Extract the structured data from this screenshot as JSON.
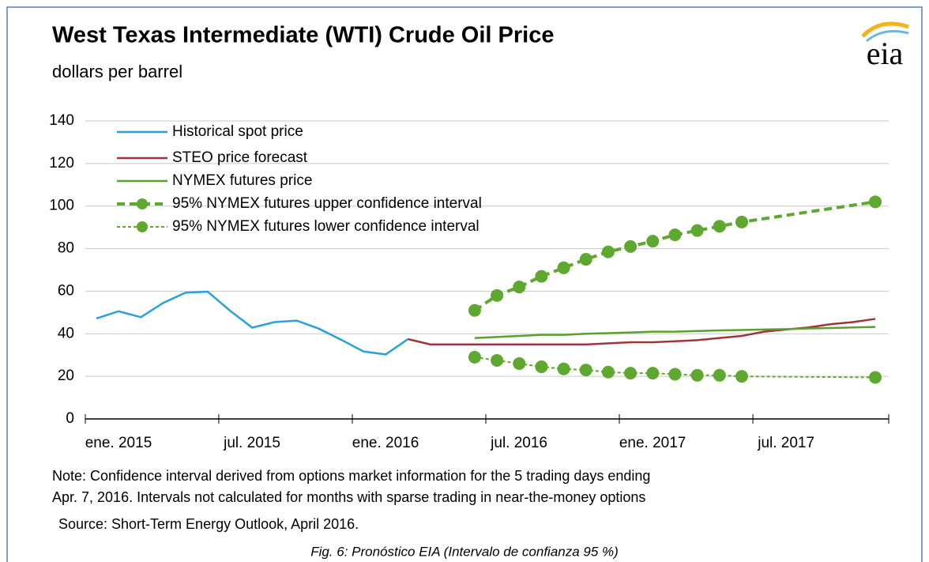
{
  "chart_data": {
    "type": "line",
    "title": "West Texas Intermediate (WTI) Crude Oil Price",
    "subtitle": "dollars per barrel",
    "logo": "eia",
    "note": [
      "Note: Confidence interval derived from options market information for the 5 trading days ending",
      "Apr. 7, 2016. Intervals not calculated for months with sparse trading in near-the-money options"
    ],
    "source": "Source: Short-Term Energy Outlook, April 2016.",
    "caption": "Fig. 6: Pronóstico EIA (Intervalo de confianza 95 %)",
    "categories": [
      "ene. 2015",
      null,
      null,
      null,
      null,
      null,
      "jul. 2015",
      null,
      null,
      null,
      null,
      null,
      "ene. 2016",
      null,
      null,
      null,
      null,
      null,
      "jul. 2016",
      null,
      null,
      null,
      null,
      null,
      "ene. 2017",
      null,
      null,
      null,
      null,
      null,
      "jul. 2017",
      null,
      null,
      null,
      null,
      null
    ],
    "ylim": [
      0,
      140
    ],
    "yticks": [
      0,
      20,
      40,
      60,
      80,
      100,
      120,
      140
    ],
    "grid": true,
    "series": [
      {
        "name": "Historical spot price",
        "color": "#27a0db",
        "values": [
          47.2,
          50.6,
          47.8,
          54.5,
          59.3,
          59.8,
          50.9,
          42.9,
          45.5,
          46.2,
          42.4,
          37.2,
          31.7,
          30.3,
          37.5,
          null,
          null,
          null,
          null,
          null,
          null,
          null,
          null,
          null,
          null,
          null,
          null,
          null,
          null,
          null,
          null,
          null,
          null,
          null,
          null,
          null
        ]
      },
      {
        "name": "STEO price forecast",
        "color": "#a0343c",
        "values": [
          null,
          null,
          null,
          null,
          null,
          null,
          null,
          null,
          null,
          null,
          null,
          null,
          null,
          null,
          37.5,
          35,
          35,
          35,
          35,
          35,
          35,
          35,
          35,
          35.5,
          36,
          36,
          36.5,
          37,
          38,
          39,
          41,
          42,
          43,
          44.5,
          45.5,
          47
        ]
      },
      {
        "name": "NYMEX futures price",
        "color": "#5aa02c",
        "values": [
          null,
          null,
          null,
          null,
          null,
          null,
          null,
          null,
          null,
          null,
          null,
          null,
          null,
          null,
          null,
          null,
          null,
          38,
          38.5,
          39,
          39.5,
          39.5,
          40,
          40.3,
          40.6,
          41,
          41,
          41.3,
          41.6,
          41.8,
          42,
          42.2,
          42.5,
          42.7,
          43,
          43.2
        ]
      },
      {
        "name": "95% NYMEX futures upper confidence interval",
        "color": "#5fa830",
        "dash": "10,6",
        "width": 4,
        "markers": true,
        "connect_gaps": true,
        "values": [
          null,
          null,
          null,
          null,
          null,
          null,
          null,
          null,
          null,
          null,
          null,
          null,
          null,
          null,
          null,
          null,
          null,
          51,
          58,
          62,
          67,
          71,
          75,
          78.5,
          81,
          83.5,
          86.5,
          88.5,
          90.5,
          92.5,
          null,
          null,
          null,
          null,
          null,
          102
        ]
      },
      {
        "name": "95% NYMEX futures lower confidence interval",
        "color": "#5fa830",
        "dash": "4,3",
        "width": 2,
        "markers": true,
        "connect_gaps": true,
        "values": [
          null,
          null,
          null,
          null,
          null,
          null,
          null,
          null,
          null,
          null,
          null,
          null,
          null,
          null,
          null,
          null,
          null,
          29,
          27.5,
          26,
          24.5,
          23.5,
          23,
          22,
          21.5,
          21.5,
          21,
          20.5,
          20.5,
          20,
          null,
          null,
          null,
          null,
          null,
          19.5
        ]
      }
    ]
  }
}
